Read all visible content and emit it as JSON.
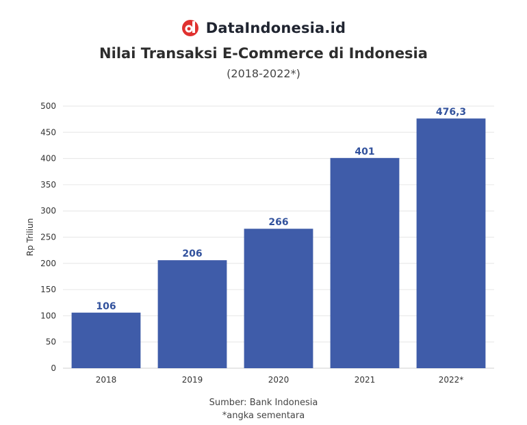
{
  "brand": {
    "name": "DataIndonesia.id",
    "logo_icon": "dataindonesia-logo-icon",
    "logo_color": "#e0312f"
  },
  "chart_data": {
    "type": "bar",
    "title": "Nilai Transaksi E-Commerce di Indonesia",
    "subtitle": "(2018-2022*)",
    "categories": [
      "2018",
      "2019",
      "2020",
      "2021",
      "2022*"
    ],
    "values": [
      106,
      206,
      266,
      401,
      476.3
    ],
    "value_labels": [
      "106",
      "206",
      "266",
      "401",
      "476,3"
    ],
    "xlabel": "",
    "ylabel": "Rp Triliun",
    "ylim": [
      0,
      500
    ],
    "yticks": [
      0,
      50,
      100,
      150,
      200,
      250,
      300,
      350,
      400,
      450,
      500
    ],
    "grid": true,
    "legend": "none",
    "bar_color": "#3f5ca9",
    "label_color": "#32529d"
  },
  "footer": {
    "source": "Sumber: Bank Indonesia",
    "note": "*angka sementara"
  }
}
